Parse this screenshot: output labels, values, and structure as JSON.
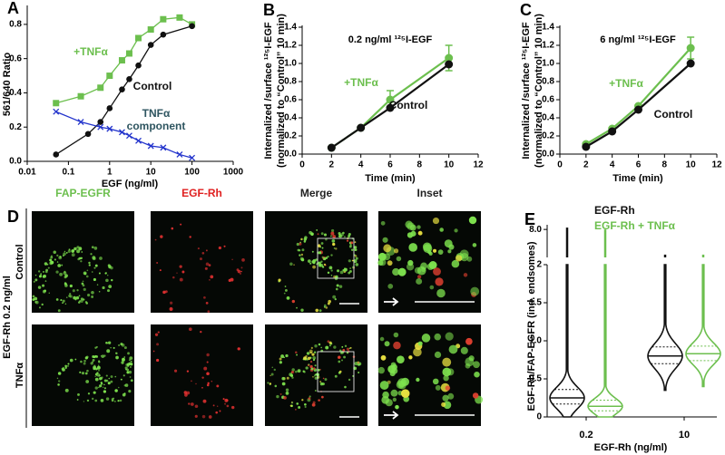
{
  "chart_data": [
    {
      "panel_label": "A",
      "type": "line",
      "x_label": "EGF (ng/ml)",
      "y_label": [
        "561/640 Ratio"
      ],
      "xlog": true,
      "xlim": [
        0.01,
        1000
      ],
      "xticks": [
        0.01,
        0.1,
        1,
        10,
        100,
        1000
      ],
      "ylim": [
        0,
        0.9
      ],
      "yticks": [
        {
          "value": 0,
          "label": "0.0"
        },
        {
          "value": 0.2,
          "label": "0.2"
        },
        {
          "value": 0.4,
          "label": "0.4"
        },
        {
          "value": 0.6,
          "label": "0.6"
        },
        {
          "value": 0.8,
          "label": "0.8"
        }
      ],
      "series": [
        {
          "name": "+TNFα",
          "color": "#6cbf4e",
          "marker": "square",
          "x": [
            0.05,
            0.2,
            0.6,
            1,
            2,
            3,
            5,
            10,
            20,
            50,
            100
          ],
          "values": [
            0.34,
            0.38,
            0.43,
            0.5,
            0.59,
            0.63,
            0.72,
            0.77,
            0.83,
            0.84,
            0.8
          ]
        },
        {
          "name": "Control",
          "color": "#111111",
          "marker": "circle",
          "x": [
            0.05,
            0.3,
            0.6,
            1,
            2,
            3,
            5,
            10,
            20,
            100
          ],
          "values": [
            0.04,
            0.16,
            0.23,
            0.31,
            0.42,
            0.48,
            0.56,
            0.68,
            0.74,
            0.79
          ]
        },
        {
          "name": "TNFα component",
          "color": "#2233cc",
          "marker": "cross",
          "x": [
            0.05,
            0.2,
            0.6,
            1,
            2,
            3,
            5,
            10,
            20,
            50,
            100
          ],
          "values": [
            0.29,
            0.23,
            0.2,
            0.19,
            0.17,
            0.15,
            0.12,
            0.09,
            0.08,
            0.04,
            0.02
          ]
        }
      ]
    },
    {
      "panel_label": "B",
      "type": "line",
      "title": "0.2 ng/ml ¹²⁵I-EGF",
      "x_label": "Time (min)",
      "y_label": [
        "Internalized /surface ¹²⁵I-EGF",
        "(normalized to “Control” 10 min)"
      ],
      "xlim": [
        0,
        12
      ],
      "xticks": [
        0,
        2,
        4,
        6,
        8,
        10,
        12
      ],
      "ylim": [
        0,
        1.4
      ],
      "yticks": [
        {
          "value": 0,
          "label": "0.0"
        },
        {
          "value": 0.2,
          "label": "0.2"
        },
        {
          "value": 0.4,
          "label": "0.4"
        },
        {
          "value": 0.6,
          "label": "0.6"
        },
        {
          "value": 0.8,
          "label": "0.8"
        },
        {
          "value": 1,
          "label": "1.0"
        },
        {
          "value": 1.2,
          "label": "1.2"
        },
        {
          "value": 1.4,
          "label": "1.4"
        }
      ],
      "x": [
        2,
        4,
        6,
        10
      ],
      "series": [
        {
          "name": "+TNFα",
          "color": "#6cbf4e",
          "marker": "circle",
          "values": [
            0.07,
            0.29,
            0.6,
            1.06
          ],
          "errors": [
            null,
            null,
            0.1,
            0.14
          ]
        },
        {
          "name": "Control",
          "color": "#111111",
          "marker": "circle",
          "values": [
            0.07,
            0.29,
            0.51,
            0.99
          ]
        }
      ]
    },
    {
      "panel_label": "C",
      "type": "line",
      "title": "6 ng/ml ¹²⁵I-EGF",
      "x_label": "Time (min)",
      "y_label": [
        "Internalized /surface ¹²⁵I-EGF",
        "(normalized to “Control” 10 min)"
      ],
      "xlim": [
        0,
        12
      ],
      "xticks": [
        0,
        2,
        4,
        6,
        8,
        10,
        12
      ],
      "ylim": [
        0,
        1.4
      ],
      "yticks": [
        {
          "value": 0,
          "label": "0.0"
        },
        {
          "value": 0.2,
          "label": "0.2"
        },
        {
          "value": 0.4,
          "label": "0.4"
        },
        {
          "value": 0.6,
          "label": "0.6"
        },
        {
          "value": 0.8,
          "label": "0.8"
        },
        {
          "value": 1,
          "label": "1.0"
        },
        {
          "value": 1.2,
          "label": "1.2"
        },
        {
          "value": 1.4,
          "label": "1.4"
        }
      ],
      "x": [
        2,
        4,
        6,
        10
      ],
      "series": [
        {
          "name": "+TNFα",
          "color": "#6cbf4e",
          "marker": "circle",
          "values": [
            0.11,
            0.28,
            0.53,
            1.17
          ],
          "errors": [
            null,
            null,
            null,
            0.12
          ]
        },
        {
          "name": "Control",
          "color": "#111111",
          "marker": "circle",
          "values": [
            0.08,
            0.25,
            0.49,
            1.0
          ]
        }
      ]
    },
    {
      "panel_label": "E",
      "type": "violin",
      "x_label": "EGF-Rh (ng/ml)",
      "y_label": [
        "EGF-Rh/FAP-EGFR (ind. endsomes)"
      ],
      "categories": [
        "0.2",
        "10"
      ],
      "ylim": [
        0,
        2
      ],
      "yticks": [
        0,
        0.5,
        {
          "value": 1,
          "label": "1.0"
        },
        1.5,
        2
      ],
      "y2lim": [
        2,
        9
      ],
      "y2ticks": [
        {
          "value": 8,
          "label": "8.0"
        }
      ],
      "series": [
        {
          "name": "EGF-Rh",
          "color": "#111111",
          "median": [
            0.25,
            0.8
          ],
          "q1": [
            0.17,
            0.7
          ],
          "q3": [
            0.36,
            0.92
          ],
          "min": [
            0,
            0.35
          ],
          "max": [
            8.4,
            2.6
          ]
        },
        {
          "name": "EGF-Rh + TNFα",
          "color": "#6cbf4e",
          "median": [
            0.14,
            0.83
          ],
          "q1": [
            0.08,
            0.74
          ],
          "q3": [
            0.22,
            0.93
          ],
          "min": [
            0,
            0.4
          ],
          "max": [
            8.0,
            2.6
          ]
        }
      ]
    }
  ],
  "panel_d": {
    "panel_label": "D",
    "columns": [
      "FAP-EGFR",
      "EGF-Rh",
      "Merge",
      "Inset"
    ],
    "rows": [
      "Control",
      "TNFα"
    ],
    "condition": "EGF-Rh 0.2 ng/ml"
  }
}
